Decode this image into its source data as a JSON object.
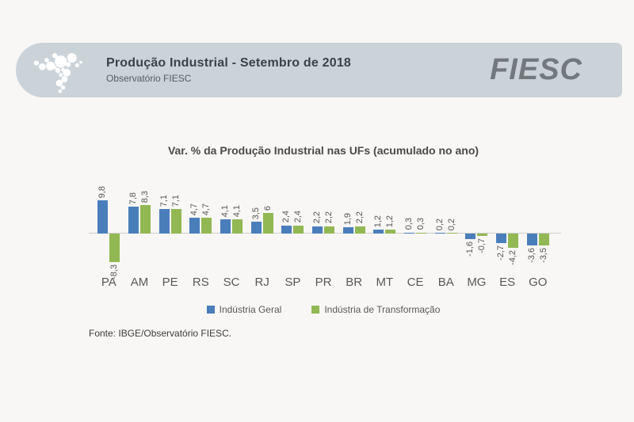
{
  "header": {
    "title": "Produção Industrial - Setembro de 2018",
    "subtitle": "Observatório FIESC",
    "brand": "FIESC"
  },
  "chart_data": {
    "type": "bar",
    "title": "Var. % da Produção Industrial nas UFs (acumulado no ano)",
    "categories": [
      "PA",
      "AM",
      "PE",
      "RS",
      "SC",
      "RJ",
      "SP",
      "PR",
      "BR",
      "MT",
      "CE",
      "BA",
      "MG",
      "ES",
      "GO"
    ],
    "series": [
      {
        "name": "Indústria Geral",
        "color": "#4a7ebb",
        "values": [
          9.8,
          7.8,
          7.1,
          4.7,
          4.1,
          3.5,
          2.4,
          2.2,
          1.9,
          1.2,
          0.3,
          0.2,
          -1.6,
          -2.7,
          -3.6
        ],
        "labels": [
          "9,8",
          "7,8",
          "7,1",
          "4,7",
          "4,1",
          "3,5",
          "2,4",
          "2,2",
          "1,9",
          "1,2",
          "0,3",
          "0,2",
          "-1,6",
          "-2,7",
          "-3,6"
        ]
      },
      {
        "name": "Indústria de Transformação",
        "color": "#92b853",
        "values": [
          -8.3,
          8.3,
          7.1,
          4.7,
          4.1,
          6,
          2.4,
          2.2,
          2.2,
          1.2,
          0.3,
          0.2,
          -0.7,
          -4.2,
          -3.5
        ],
        "labels": [
          "-8,3",
          "8,3",
          "7,1",
          "4,7",
          "4,1",
          "6",
          "2,4",
          "2,2",
          "2,2",
          "1,2",
          "0,3",
          "0,2",
          "-0,7",
          "-4,2",
          "-3,5"
        ]
      }
    ],
    "xlabel": "",
    "ylabel": "",
    "ylim": [
      -10,
      11
    ],
    "grid": false,
    "legend_position": "bottom",
    "value_labels_rotated": true
  },
  "footer": {
    "source": "Fonte: IBGE/Observatório FIESC."
  },
  "colors": {
    "background": "#f8f7f5",
    "header_bg": "#cbd3d9",
    "axis_line": "#cccccc",
    "series_blue": "#4a7ebb",
    "series_green": "#92b853"
  }
}
